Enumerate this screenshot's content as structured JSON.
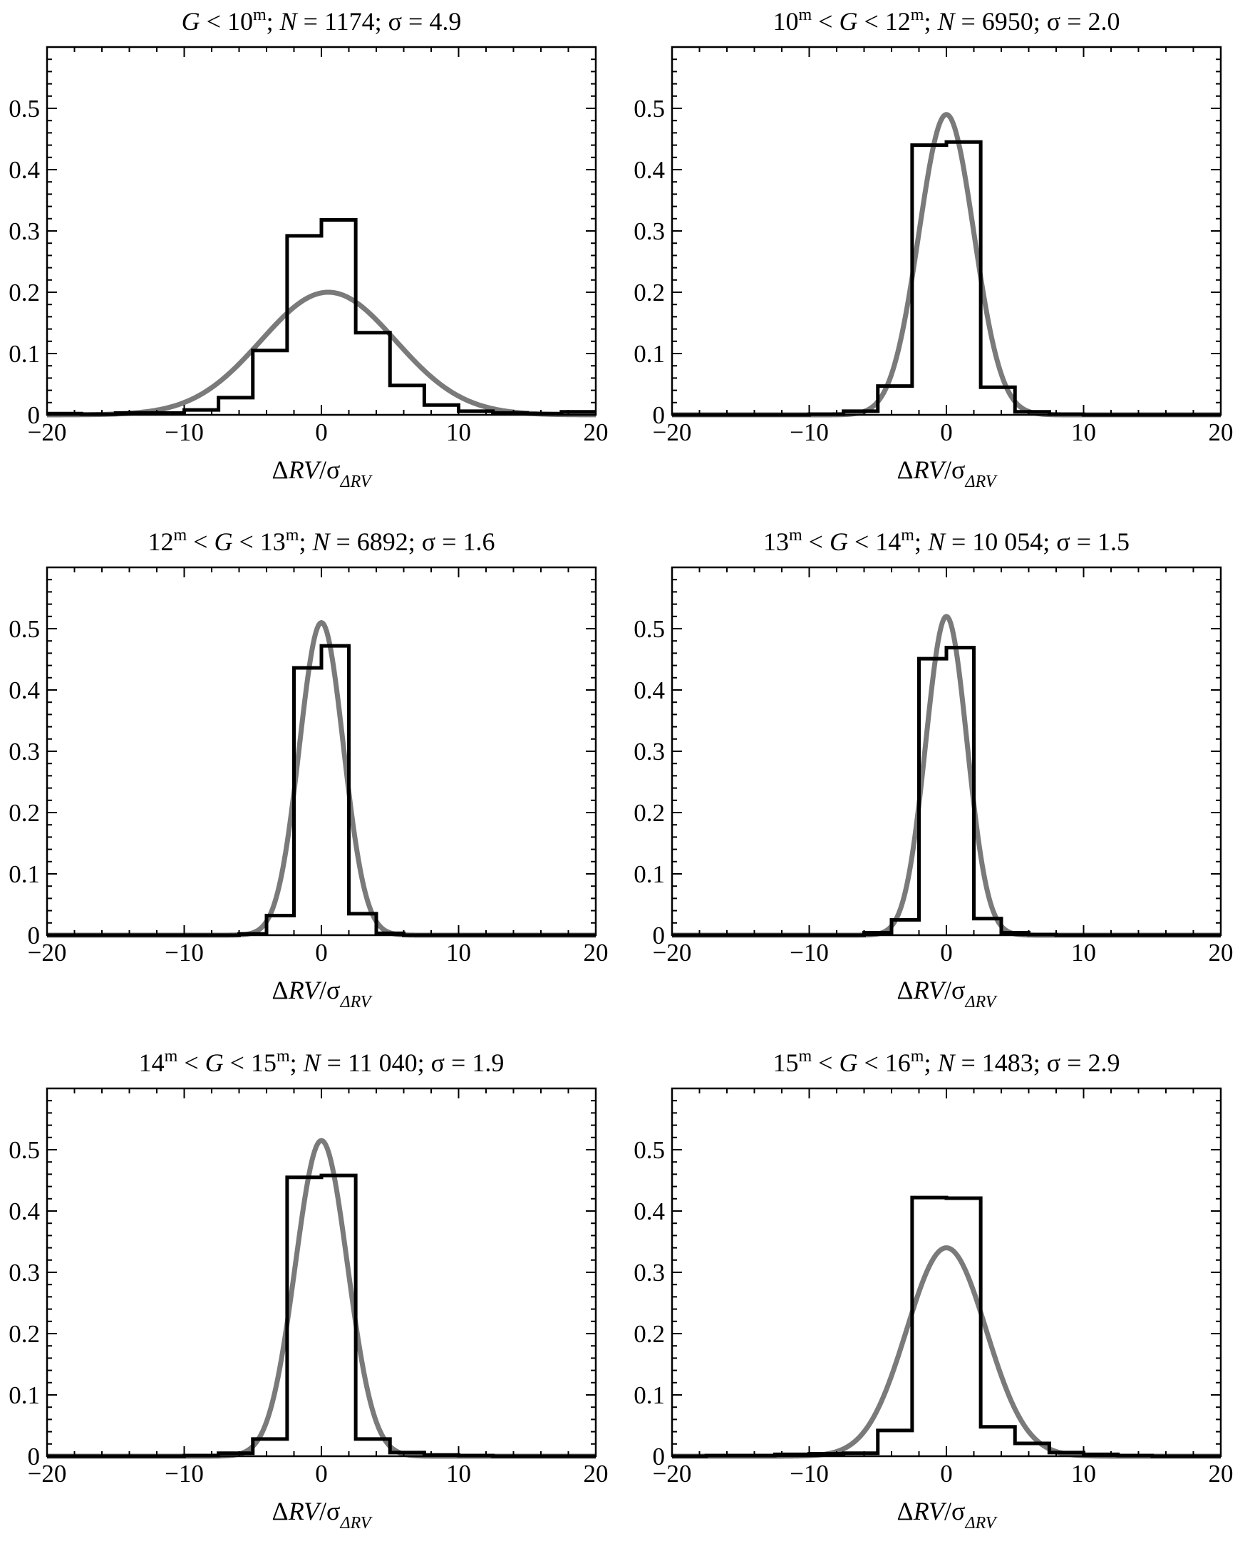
{
  "panels": [
    {
      "title_parts": {
        "pre": "",
        "g_upper": "10",
        "tail": "; ",
        "n_value": "1174",
        "sigma_value": "4.9"
      },
      "xlabel": "ΔRV/σ",
      "xlabel_sub": "ΔRV"
    },
    {
      "title_parts": {
        "g_lower": "10",
        "g_upper": "12",
        "n_value": "6950",
        "sigma_value": "2.0"
      },
      "xlabel": "ΔRV/σ",
      "xlabel_sub": "ΔRV"
    },
    {
      "title_parts": {
        "g_lower": "12",
        "g_upper": "13",
        "n_value": "6892",
        "sigma_value": "1.6"
      },
      "xlabel": "ΔRV/σ",
      "xlabel_sub": "ΔRV"
    },
    {
      "title_parts": {
        "g_lower": "13",
        "g_upper": "14",
        "n_value": "10 054",
        "sigma_value": "1.5"
      },
      "xlabel": "ΔRV/σ",
      "xlabel_sub": "ΔRV"
    },
    {
      "title_parts": {
        "g_lower": "14",
        "g_upper": "15",
        "n_value": "11 040",
        "sigma_value": "1.9"
      },
      "xlabel": "ΔRV/σ",
      "xlabel_sub": "ΔRV"
    },
    {
      "title_parts": {
        "g_lower": "15",
        "g_upper": "16",
        "n_value": "1483",
        "sigma_value": "2.9"
      },
      "xlabel": "ΔRV/σ",
      "xlabel_sub": "ΔRV"
    }
  ],
  "chart_data": [
    {
      "type": "bar",
      "title": "G < 10m; N = 1174; σ = 4.9",
      "xlabel": "ΔRV/σΔRV",
      "ylabel": "",
      "xlim": [
        -20,
        20
      ],
      "ylim": [
        0,
        0.6
      ],
      "xticks": [
        -20,
        -10,
        0,
        10,
        20
      ],
      "yticks": [
        0,
        0.1,
        0.2,
        0.3,
        0.4,
        0.5
      ],
      "grid": false,
      "histogram": {
        "bin_edges": [
          -20,
          -17.5,
          -15,
          -12.5,
          -10,
          -7.5,
          -5,
          -2.5,
          0,
          2.5,
          5,
          7.5,
          10,
          12.5,
          15,
          17.5,
          20
        ],
        "values": [
          0.002,
          0.001,
          0.003,
          0.003,
          0.008,
          0.028,
          0.105,
          0.292,
          0.318,
          0.134,
          0.048,
          0.016,
          0.006,
          0.003,
          0.002,
          0.005
        ]
      },
      "fit": {
        "name": "",
        "peak": 0.2,
        "mean": 0.5,
        "sigma": 4.9
      }
    },
    {
      "type": "bar",
      "title": "10m < G < 12m; N = 6950; σ = 2.0",
      "xlabel": "ΔRV/σΔRV",
      "ylabel": "",
      "xlim": [
        -20,
        20
      ],
      "ylim": [
        0,
        0.6
      ],
      "xticks": [
        -20,
        -10,
        0,
        10,
        20
      ],
      "yticks": [
        0,
        0.1,
        0.2,
        0.3,
        0.4,
        0.5
      ],
      "grid": false,
      "histogram": {
        "bin_edges": [
          -20,
          -17.5,
          -15,
          -12.5,
          -10,
          -7.5,
          -5,
          -2.5,
          0,
          2.5,
          5,
          7.5,
          10,
          12.5,
          15,
          17.5,
          20
        ],
        "values": [
          0.0,
          0.0,
          0.0,
          0.0,
          0.001,
          0.006,
          0.047,
          0.44,
          0.445,
          0.045,
          0.005,
          0.001,
          0.0,
          0.0,
          0.0,
          0.0
        ]
      },
      "fit": {
        "name": "",
        "peak": 0.49,
        "mean": 0.0,
        "sigma": 2.0
      }
    },
    {
      "type": "bar",
      "title": "12m < G < 13m; N = 6892; σ = 1.6",
      "xlabel": "ΔRV/σΔRV",
      "ylabel": "",
      "xlim": [
        -20,
        20
      ],
      "ylim": [
        0,
        0.6
      ],
      "xticks": [
        -20,
        -10,
        0,
        10,
        20
      ],
      "yticks": [
        0,
        0.1,
        0.2,
        0.3,
        0.4,
        0.5
      ],
      "grid": false,
      "histogram": {
        "bin_edges": [
          -20,
          -18,
          -16,
          -14,
          -12,
          -10,
          -8,
          -6,
          -4,
          -2,
          0,
          2,
          4,
          6,
          8,
          10,
          12,
          14,
          16,
          18,
          20
        ],
        "values": [
          0.0,
          0.0,
          0.0,
          0.0,
          0.0,
          0.0,
          0.0,
          0.002,
          0.032,
          0.436,
          0.472,
          0.035,
          0.003,
          0.0,
          0.0,
          0.0,
          0.0,
          0.0,
          0.0,
          0.0
        ]
      },
      "fit": {
        "name": "",
        "peak": 0.51,
        "mean": 0.0,
        "sigma": 1.6
      }
    },
    {
      "type": "bar",
      "title": "13m < G < 14m; N = 10 054; σ = 1.5",
      "xlabel": "ΔRV/σΔRV",
      "ylabel": "",
      "xlim": [
        -20,
        20
      ],
      "ylim": [
        0,
        0.6
      ],
      "xticks": [
        -20,
        -10,
        0,
        10,
        20
      ],
      "yticks": [
        0,
        0.1,
        0.2,
        0.3,
        0.4,
        0.5
      ],
      "grid": false,
      "histogram": {
        "bin_edges": [
          -20,
          -18,
          -16,
          -14,
          -12,
          -10,
          -8,
          -6,
          -4,
          -2,
          0,
          2,
          4,
          6,
          8,
          10,
          12,
          14,
          16,
          18,
          20
        ],
        "values": [
          0.0,
          0.0,
          0.0,
          0.0,
          0.0,
          0.0,
          0.0,
          0.004,
          0.025,
          0.451,
          0.469,
          0.027,
          0.004,
          0.001,
          0.0,
          0.0,
          0.0,
          0.0,
          0.0,
          0.0
        ]
      },
      "fit": {
        "name": "",
        "peak": 0.52,
        "mean": 0.0,
        "sigma": 1.5
      }
    },
    {
      "type": "bar",
      "title": "14m < G < 15m; N = 11 040; σ = 1.9",
      "xlabel": "ΔRV/σΔRV",
      "ylabel": "",
      "xlim": [
        -20,
        20
      ],
      "ylim": [
        0,
        0.6
      ],
      "xticks": [
        -20,
        -10,
        0,
        10,
        20
      ],
      "yticks": [
        0,
        0.1,
        0.2,
        0.3,
        0.4,
        0.5
      ],
      "grid": false,
      "histogram": {
        "bin_edges": [
          -20,
          -17.5,
          -15,
          -12.5,
          -10,
          -7.5,
          -5,
          -2.5,
          0,
          2.5,
          5,
          7.5,
          10,
          12.5,
          15,
          17.5,
          20
        ],
        "values": [
          0.0,
          0.0,
          0.0,
          0.0,
          0.001,
          0.005,
          0.028,
          0.455,
          0.458,
          0.028,
          0.006,
          0.002,
          0.001,
          0.0,
          0.0,
          0.0
        ]
      },
      "fit": {
        "name": "",
        "peak": 0.515,
        "mean": 0.0,
        "sigma": 1.9
      }
    },
    {
      "type": "bar",
      "title": "15m < G < 16m; N = 1483; σ = 2.9",
      "xlabel": "ΔRV/σΔRV",
      "ylabel": "",
      "xlim": [
        -20,
        20
      ],
      "ylim": [
        0,
        0.6
      ],
      "xticks": [
        -20,
        -10,
        0,
        10,
        20
      ],
      "yticks": [
        0,
        0.1,
        0.2,
        0.3,
        0.4,
        0.5
      ],
      "grid": false,
      "histogram": {
        "bin_edges": [
          -20,
          -17.5,
          -15,
          -12.5,
          -10,
          -7.5,
          -5,
          -2.5,
          0,
          2.5,
          5,
          7.5,
          10,
          12.5,
          15,
          17.5,
          20
        ],
        "values": [
          0.0,
          0.001,
          0.001,
          0.003,
          0.004,
          0.005,
          0.042,
          0.422,
          0.421,
          0.048,
          0.021,
          0.006,
          0.003,
          0.001,
          0.0,
          0.0
        ]
      },
      "fit": {
        "name": "",
        "peak": 0.34,
        "mean": 0.0,
        "sigma": 2.9
      }
    }
  ],
  "colors": {
    "histogram": "#000000",
    "fit_curve": "#7a7a7a",
    "axes": "#000000"
  }
}
